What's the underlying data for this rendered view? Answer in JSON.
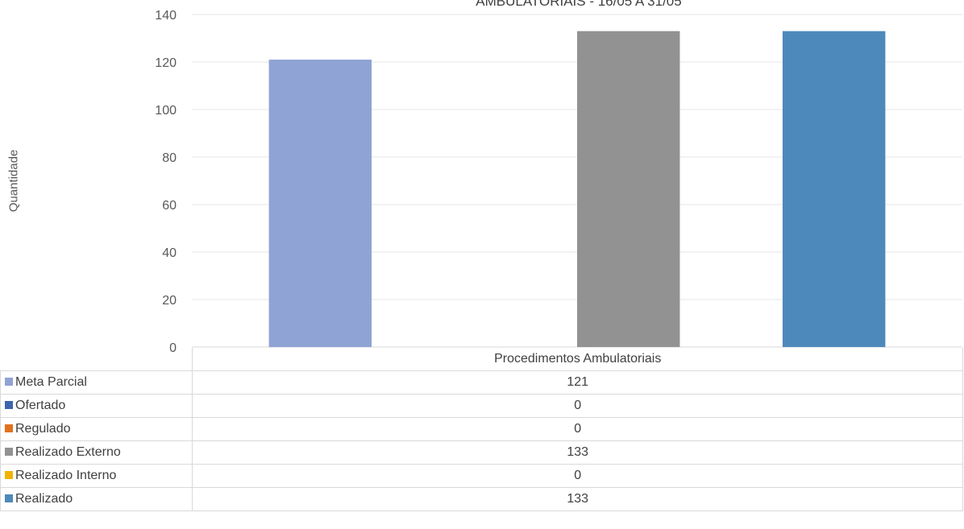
{
  "chart_data": {
    "type": "bar",
    "title": "AMBULATORIAIS - 16/05 A 31/05",
    "ylabel": "Quantidade",
    "xlabel": "",
    "categories": [
      "Procedimentos Ambulatoriais"
    ],
    "ylim": [
      0,
      140
    ],
    "yticks": [
      0,
      20,
      40,
      60,
      80,
      100,
      120,
      140
    ],
    "grid": true,
    "legend": "data-table",
    "series": [
      {
        "name": "Meta Parcial",
        "values": [
          121
        ],
        "color": "#8fa3d4"
      },
      {
        "name": "Ofertado",
        "values": [
          0
        ],
        "color": "#3e64ad"
      },
      {
        "name": "Regulado",
        "values": [
          0
        ],
        "color": "#e2711d"
      },
      {
        "name": "Realizado Externo",
        "values": [
          133
        ],
        "color": "#929292"
      },
      {
        "name": "Realizado Interno",
        "values": [
          0
        ],
        "color": "#f0b400"
      },
      {
        "name": "Realizado",
        "values": [
          133
        ],
        "color": "#4e89bb"
      }
    ]
  },
  "table": {
    "rows": [
      {
        "label": "Meta Parcial",
        "value": "121"
      },
      {
        "label": "Ofertado",
        "value": "0"
      },
      {
        "label": "Regulado",
        "value": "0"
      },
      {
        "label": "Realizado Externo",
        "value": "133"
      },
      {
        "label": "Realizado Interno",
        "value": "0"
      },
      {
        "label": "Realizado",
        "value": "133"
      }
    ]
  }
}
